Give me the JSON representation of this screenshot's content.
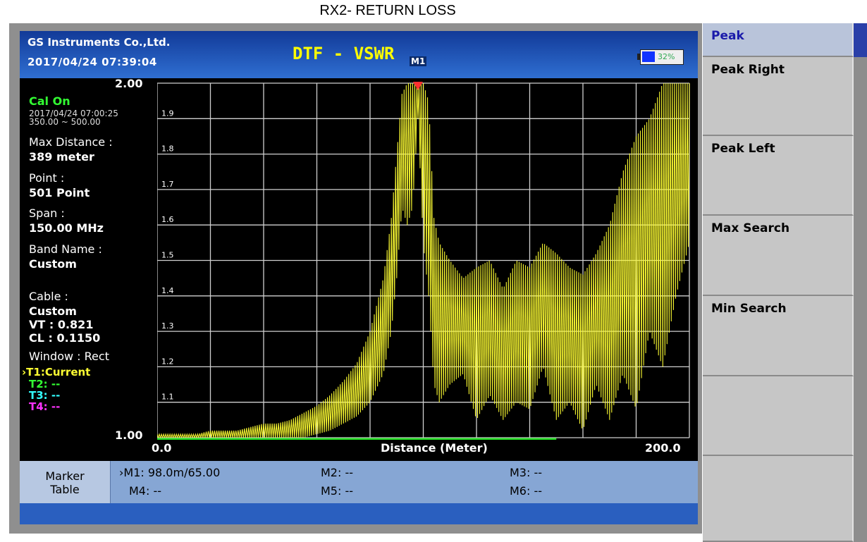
{
  "page_title": "RX2- RETURN LOSS",
  "header": {
    "company": "GS Instruments Co.,Ltd.",
    "datetime": "2017/04/24 07:39:04",
    "mode_title": "DTF - VSWR",
    "marker_flag": "M1",
    "battery_percent": "32%",
    "battery_level": 0.32
  },
  "left_panel": {
    "y_max": "2.00",
    "y_min": "1.00",
    "cal_status": "Cal On",
    "cal_date": "2017/04/24 07:00:25",
    "cal_range": "350.00 ~ 500.00",
    "max_distance_label": "Max Distance :",
    "max_distance_value": "389 meter",
    "point_label": "Point :",
    "point_value": "501 Point",
    "span_label": "Span :",
    "span_value": "150.00 MHz",
    "band_name_label": "Band Name :",
    "band_name_value": "Custom",
    "cable_label": "Cable :",
    "cable_value": "Custom",
    "vt": "VT : 0.821",
    "cl": "CL : 0.1150",
    "window": "Window : Rect",
    "traces": [
      "›T1:Current",
      "T2: --",
      "T3: --",
      "T4: --"
    ]
  },
  "chart_data": {
    "type": "line",
    "xlabel": "Distance (Meter)",
    "x_start_label": "0.0",
    "x_end_label": "200.0",
    "xlim": [
      0,
      200
    ],
    "ylim": [
      1.0,
      2.0
    ],
    "y_ticks": [
      "1.9",
      "1.8",
      "1.7",
      "1.6",
      "1.5",
      "1.4",
      "1.3",
      "1.2",
      "1.1"
    ],
    "grid": true,
    "trace_color": "#ffff33",
    "marker": {
      "name": "M1",
      "x": 98.0,
      "y": 2.0
    },
    "series": [
      {
        "x": [
          0,
          5,
          10,
          15,
          20,
          25,
          30,
          35,
          40,
          45,
          50,
          55,
          60,
          65,
          70,
          75,
          80,
          85,
          88,
          90,
          92,
          94,
          96,
          98,
          100,
          102,
          104,
          106,
          110,
          115,
          120,
          125,
          130,
          135,
          140,
          145,
          150,
          155,
          160,
          165,
          170,
          175,
          180,
          185,
          190,
          195,
          200
        ],
        "y_upper": [
          1.01,
          1.01,
          1.01,
          1.01,
          1.02,
          1.02,
          1.02,
          1.03,
          1.04,
          1.04,
          1.05,
          1.07,
          1.09,
          1.12,
          1.16,
          1.21,
          1.3,
          1.45,
          1.62,
          1.8,
          1.97,
          2.0,
          2.0,
          2.0,
          2.0,
          1.95,
          1.62,
          1.55,
          1.5,
          1.45,
          1.48,
          1.5,
          1.42,
          1.5,
          1.48,
          1.55,
          1.52,
          1.48,
          1.46,
          1.52,
          1.6,
          1.75,
          1.85,
          1.9,
          2.0,
          2.0,
          2.0
        ],
        "y_lower": [
          1.0,
          1.0,
          1.0,
          1.0,
          1.0,
          1.0,
          1.0,
          1.0,
          1.0,
          1.0,
          1.0,
          1.0,
          1.01,
          1.02,
          1.04,
          1.06,
          1.1,
          1.18,
          1.3,
          1.45,
          1.65,
          1.6,
          1.65,
          1.9,
          1.55,
          1.4,
          1.15,
          1.1,
          1.15,
          1.18,
          1.05,
          1.12,
          1.05,
          1.1,
          1.08,
          1.2,
          1.05,
          1.1,
          1.02,
          1.15,
          1.05,
          1.18,
          1.08,
          1.3,
          1.2,
          1.4,
          1.55
        ]
      }
    ],
    "reference_line": {
      "x_start": 0,
      "x_end": 150,
      "color": "#22dd22"
    }
  },
  "marker_table": {
    "label_line1": "Marker",
    "label_line2": "Table",
    "m1": "›M1: 98.0m/65.00",
    "m2": "M2: --",
    "m3": "M3: --",
    "m4": "M4: --",
    "m5": "M5: --",
    "m6": "M6: --"
  },
  "softkeys": [
    "Peak",
    "Peak Right",
    "Peak Left",
    "Max Search",
    "Min Search",
    "",
    ""
  ]
}
